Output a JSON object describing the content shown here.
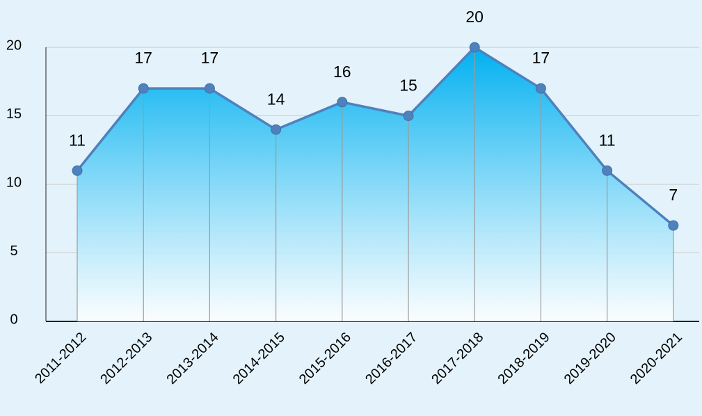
{
  "chart_data": {
    "type": "area",
    "categories": [
      "2011-2012",
      "2012-2013",
      "2013-2014",
      "2014-2015",
      "2015-2016",
      "2016-2017",
      "2017-2018",
      "2018-2019",
      "2019-2020",
      "2020-2021"
    ],
    "values": [
      11,
      17,
      17,
      14,
      16,
      15,
      20,
      17,
      11,
      7
    ],
    "color": "#4f81bd",
    "ylim": [
      0,
      20
    ],
    "yticks": [
      0,
      5,
      10,
      15,
      20
    ],
    "grid": true
  }
}
